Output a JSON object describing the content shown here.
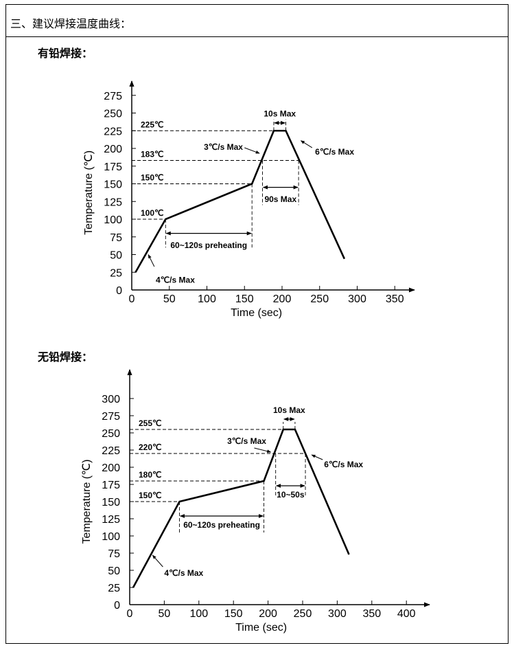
{
  "header": {
    "title": "三、建议焊接温度曲线："
  },
  "sections": [
    {
      "title": "有铅焊接："
    },
    {
      "title": "无铅焊接："
    }
  ],
  "chart_data": [
    {
      "type": "line",
      "title": "有铅焊接",
      "xlabel": "Time (sec)",
      "ylabel": "Temperature (℃)",
      "xlim": [
        0,
        350
      ],
      "ylim": [
        0,
        275
      ],
      "xticks": [
        0,
        50,
        100,
        150,
        200,
        250,
        300,
        350
      ],
      "yticks": [
        0,
        25,
        50,
        75,
        100,
        125,
        150,
        175,
        200,
        225,
        250,
        275
      ],
      "series": [
        {
          "name": "profile",
          "x": [
            5,
            45,
            160,
            189,
            205,
            283
          ],
          "y": [
            25,
            100,
            150,
            225,
            225,
            44
          ]
        }
      ],
      "reference_levels": [
        {
          "label": "225℃",
          "value": 225,
          "x_end": 189
        },
        {
          "label": "183℃",
          "value": 183,
          "x_end": 222
        },
        {
          "label": "150℃",
          "value": 150,
          "x_end": 160
        },
        {
          "label": "100℃",
          "value": 100,
          "x_end": 45
        }
      ],
      "spans": [
        {
          "label": "60~120s preheating",
          "x1": 45,
          "x2": 160
        },
        {
          "label": "90s Max",
          "x1": 174,
          "x2": 222
        },
        {
          "label": "10s Max",
          "x1": 189,
          "x2": 205
        }
      ],
      "slope_notes": [
        {
          "label": "4℃/s Max"
        },
        {
          "label": "3℃/s Max"
        },
        {
          "label": "6℃/s Max"
        }
      ],
      "grid": false
    },
    {
      "type": "line",
      "title": "无铅焊接",
      "xlabel": "Time (sec)",
      "ylabel": "Temperature (℃)",
      "xlim": [
        0,
        400
      ],
      "ylim": [
        0,
        300
      ],
      "xticks": [
        0,
        50,
        100,
        150,
        200,
        250,
        300,
        350,
        400
      ],
      "yticks": [
        0,
        25,
        50,
        75,
        100,
        125,
        150,
        175,
        200,
        225,
        250,
        275,
        300
      ],
      "series": [
        {
          "name": "profile",
          "x": [
            5,
            72,
            194,
            222,
            239,
            317
          ],
          "y": [
            25,
            150,
            180,
            255,
            255,
            73
          ]
        }
      ],
      "reference_levels": [
        {
          "label": "255℃",
          "value": 255,
          "x_end": 222
        },
        {
          "label": "220℃",
          "value": 220,
          "x_end": 254
        },
        {
          "label": "180℃",
          "value": 180,
          "x_end": 194
        },
        {
          "label": "150℃",
          "value": 150,
          "x_end": 72
        }
      ],
      "spans": [
        {
          "label": "60~120s preheating",
          "x1": 72,
          "x2": 194
        },
        {
          "label": "10~50s",
          "x1": 211,
          "x2": 254
        },
        {
          "label": "10s Max",
          "x1": 222,
          "x2": 239
        }
      ],
      "slope_notes": [
        {
          "label": "4℃/s Max"
        },
        {
          "label": "3℃/s Max"
        },
        {
          "label": "6℃/s Max"
        }
      ],
      "grid": false
    }
  ]
}
